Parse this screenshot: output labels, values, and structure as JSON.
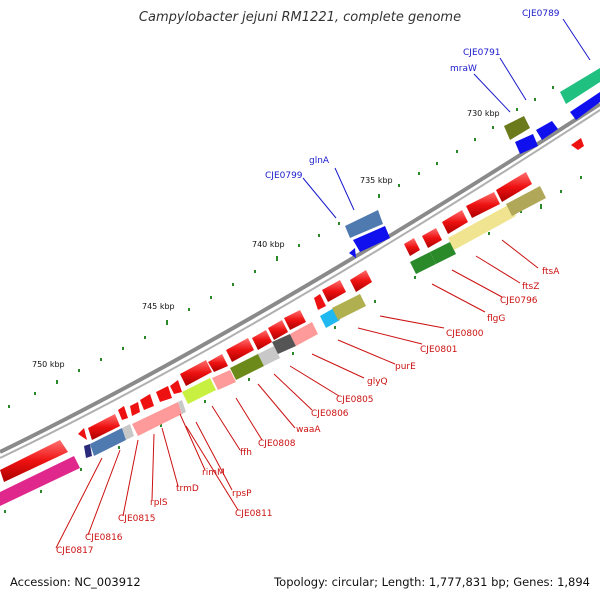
{
  "title": "Campylobacter jejuni RM1221, complete genome",
  "footer": {
    "accession": "Accession: NC_003912",
    "summary": "Topology: circular; Length: 1,777,831 bp; Genes: 1,894"
  },
  "ticks": [
    "730 kbp",
    "735 kbp",
    "740 kbp",
    "745 kbp",
    "750 kbp"
  ],
  "labels_blue": [
    "CJE0789",
    "CJE0791",
    "mraW",
    "glnA",
    "CJE0799"
  ],
  "labels_red": [
    "ftsA",
    "ftsZ",
    "CJE0796",
    "flgG",
    "CJE0800",
    "CJE0801",
    "purE",
    "glyQ",
    "CJE0805",
    "CJE0806",
    "waaA",
    "CJE0808",
    "ffh",
    "rimM",
    "rpsP",
    "CJE0811",
    "trmD",
    "rplS",
    "CJE0815",
    "CJE0816",
    "CJE0817"
  ],
  "colors": {
    "forward": "#1010ee",
    "reverse": "#ee1111",
    "backbone": "#808080",
    "tick": "#2a8a2a",
    "label_blue": "#1a1acc",
    "label_red": "#cc1111"
  }
}
